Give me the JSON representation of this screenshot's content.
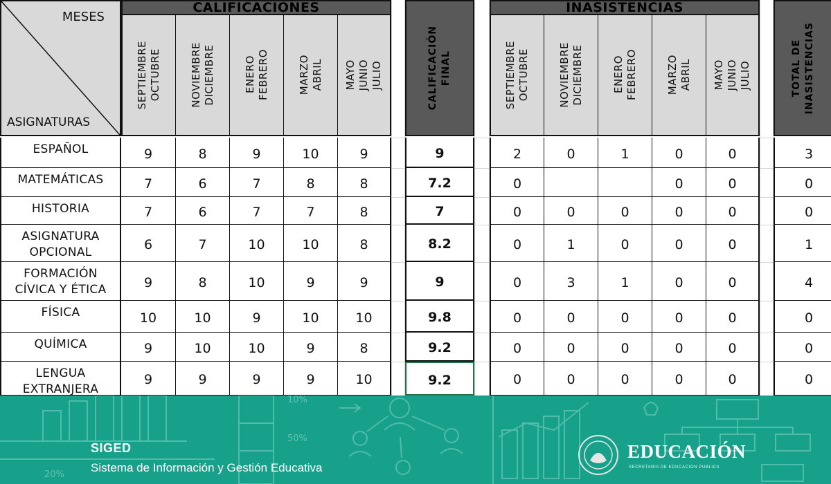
{
  "sheet": {
    "header_meses": "MESES",
    "header_asignaturas": "ASIGNATURAS",
    "group_calificaciones": "CALIFICACIONES",
    "group_inasistencias": "INASISTENCIAS",
    "grade_periods": [
      "SEPTIEMBRE\nOCTUBRE",
      "NOVIEMBRE\nDICIEMBRE",
      "ENERO\nFEBRERO",
      "MARZO\nABRIL",
      "MAYO\nJUNIO\nJULIO"
    ],
    "absence_periods": [
      "SEPTIEMBRE\nOCTUBRE",
      "NOVIEMBRE\nDICIEMBRE",
      "ENERO\nFEBRERO",
      "MARZO\nABRIL",
      "MAYO\nJUNIO\nJULIO"
    ],
    "final_header": "CALIFICACIÓN\nFINAL",
    "total_header": "TOTAL DE\nINASISTENCIAS",
    "rows": [
      {
        "subject": "ESPAÑOL",
        "grades": [
          "9",
          "8",
          "9",
          "10",
          "9"
        ],
        "final": "9",
        "absences": [
          "2",
          "0",
          "1",
          "0",
          "0"
        ],
        "total": "3"
      },
      {
        "subject": "MATEMÁTICAS",
        "grades": [
          "7",
          "6",
          "7",
          "8",
          "8"
        ],
        "final": "7.2",
        "absences": [
          "0",
          "",
          "",
          "0",
          "0"
        ],
        "total": "0"
      },
      {
        "subject": "HISTORIA",
        "grades": [
          "7",
          "6",
          "7",
          "7",
          "8"
        ],
        "final": "7",
        "absences": [
          "0",
          "0",
          "0",
          "0",
          "0"
        ],
        "total": "0"
      },
      {
        "subject": "ASIGNATURA\nOPCIONAL",
        "grades": [
          "6",
          "7",
          "10",
          "10",
          "8"
        ],
        "final": "8.2",
        "absences": [
          "0",
          "1",
          "0",
          "0",
          "0"
        ],
        "total": "1"
      },
      {
        "subject": "FORMACIÓN\nCÍVICA Y ÉTICA",
        "grades": [
          "9",
          "8",
          "10",
          "9",
          "9"
        ],
        "final": "9",
        "absences": [
          "0",
          "3",
          "1",
          "0",
          "0"
        ],
        "total": "4"
      },
      {
        "subject": "FÍSICA",
        "grades": [
          "10",
          "10",
          "9",
          "10",
          "10"
        ],
        "final": "9.8",
        "absences": [
          "0",
          "0",
          "0",
          "0",
          "0"
        ],
        "total": "0"
      },
      {
        "subject": "QUÍMICA",
        "grades": [
          "9",
          "10",
          "10",
          "9",
          "8"
        ],
        "final": "9.2",
        "absences": [
          "0",
          "0",
          "0",
          "0",
          "0"
        ],
        "total": "0"
      },
      {
        "subject": "LENGUA\nEXTRANJERA",
        "grades": [
          "9",
          "9",
          "9",
          "9",
          "10"
        ],
        "final": "9.2",
        "absences": [
          "0",
          "0",
          "0",
          "0",
          "0"
        ],
        "total": "0"
      }
    ]
  },
  "footer": {
    "brand": "SIGED",
    "tagline": "Sistema de Información y Gestión Educativa",
    "logo_text": "EDUCACIÓN",
    "logo_subtext": "SECRETARÍA DE EDUCACIÓN PÚBLICA",
    "chart_labels": [
      "10%",
      "50%",
      "20%"
    ],
    "colors": {
      "footer_bg": "#17a08a",
      "header_gray": "#d9d9d9",
      "header_dark": "#595959",
      "active_cell_border": "#217346"
    }
  }
}
